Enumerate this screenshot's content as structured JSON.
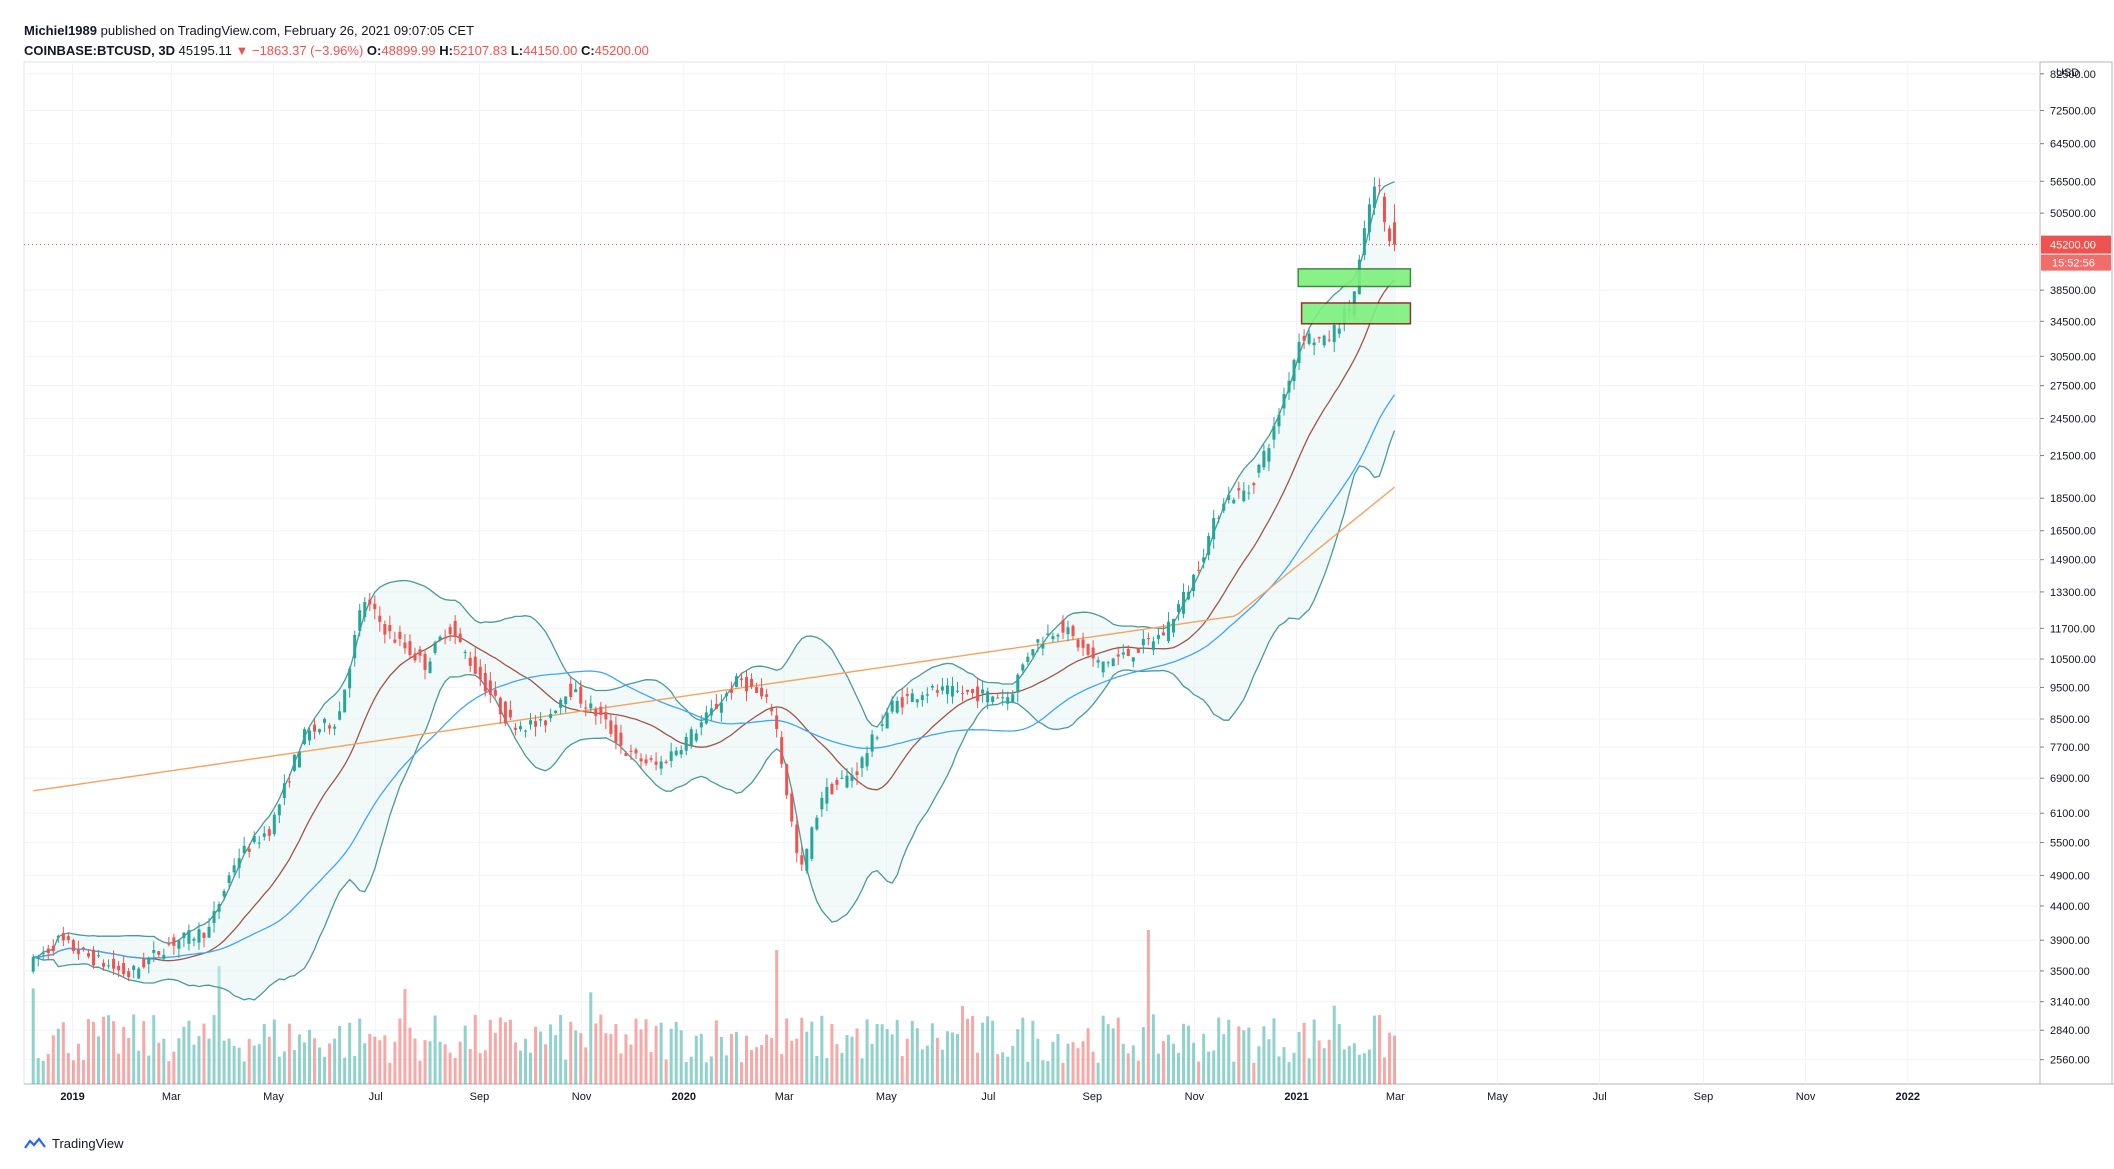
{
  "header": {
    "author": "Michiel1989",
    "published_text": "published on TradingView.com, February 26, 2021 09:07:05 CET",
    "symbol": "COINBASE:BTCUSD, 3D",
    "last": "45195.11",
    "change": "−1863.37 (−3.96%)",
    "o_label": "O:",
    "o_value": "48899.99",
    "h_label": "H:",
    "h_value": "52107.83",
    "l_label": "L:",
    "l_value": "44150.00",
    "c_label": "C:",
    "c_value": "45200.00"
  },
  "footer": {
    "brand": "TradingView"
  },
  "colors": {
    "up": "#26a69a",
    "down": "#ef5350",
    "bb": "#4a9a96",
    "ma20": "#a0544a",
    "ma50": "#42a5f5",
    "ma200": "#f4a460",
    "zone": "#7cf07c"
  },
  "chart_data": {
    "type": "candlestick",
    "currency": "USD",
    "scale": "log",
    "price_axis": [
      "82500.00",
      "72500.00",
      "64500.00",
      "56500.00",
      "50500.00",
      "38500.00",
      "34500.00",
      "30500.00",
      "27500.00",
      "24500.00",
      "21500.00",
      "18500.00",
      "16500.00",
      "14900.00",
      "13300.00",
      "11700.00",
      "10500.00",
      "9500.00",
      "8500.00",
      "7700.00",
      "6900.00",
      "6100.00",
      "5500.00",
      "4900.00",
      "4400.00",
      "3900.00",
      "3500.00",
      "3140.00",
      "2840.00",
      "2560.00"
    ],
    "last_price": "45200.00",
    "countdown": "15:52:56",
    "time_axis": [
      "2019",
      "Mar",
      "May",
      "Jul",
      "Sep",
      "Nov",
      "2020",
      "Mar",
      "May",
      "Jul",
      "Sep",
      "Nov",
      "2021",
      "Mar",
      "May",
      "Jul",
      "Sep",
      "Nov",
      "2022"
    ],
    "close_path": [
      [
        "2018-12-10",
        3600
      ],
      [
        "2018-12-25",
        3900
      ],
      [
        "2019-01-10",
        3700
      ],
      [
        "2019-02-05",
        3450
      ],
      [
        "2019-03-01",
        3850
      ],
      [
        "2019-03-25",
        4050
      ],
      [
        "2019-04-10",
        5200
      ],
      [
        "2019-05-01",
        5800
      ],
      [
        "2019-05-20",
        8000
      ],
      [
        "2019-06-10",
        8500
      ],
      [
        "2019-06-25",
        13000
      ],
      [
        "2019-07-10",
        11500
      ],
      [
        "2019-08-01",
        10300
      ],
      [
        "2019-08-15",
        11800
      ],
      [
        "2019-09-01",
        10000
      ],
      [
        "2019-09-20",
        8400
      ],
      [
        "2019-10-10",
        8300
      ],
      [
        "2019-10-25",
        9500
      ],
      [
        "2019-11-15",
        8500
      ],
      [
        "2019-11-30",
        7500
      ],
      [
        "2019-12-18",
        7200
      ],
      [
        "2020-01-10",
        8200
      ],
      [
        "2020-02-05",
        9800
      ],
      [
        "2020-02-25",
        8800
      ],
      [
        "2020-03-12",
        4900
      ],
      [
        "2020-03-25",
        6500
      ],
      [
        "2020-04-15",
        7100
      ],
      [
        "2020-05-05",
        8900
      ],
      [
        "2020-05-25",
        9400
      ],
      [
        "2020-06-20",
        9300
      ],
      [
        "2020-07-15",
        9200
      ],
      [
        "2020-07-28",
        11000
      ],
      [
        "2020-08-15",
        11800
      ],
      [
        "2020-09-05",
        10300
      ],
      [
        "2020-09-25",
        10700
      ],
      [
        "2020-10-15",
        11500
      ],
      [
        "2020-11-01",
        13800
      ],
      [
        "2020-11-20",
        18500
      ],
      [
        "2020-12-05",
        19000
      ],
      [
        "2020-12-20",
        23500
      ],
      [
        "2021-01-05",
        33000
      ],
      [
        "2021-01-20",
        32000
      ],
      [
        "2021-02-05",
        37000
      ],
      [
        "2021-02-15",
        52000
      ],
      [
        "2021-02-20",
        57000
      ],
      [
        "2021-02-26",
        45200
      ]
    ],
    "zones": [
      {
        "label": "resistance-zone-upper",
        "top": 41500,
        "bottom": 39000,
        "from": "2021-01-02",
        "to": "2021-03-10"
      },
      {
        "label": "resistance-zone-lower",
        "top": 36800,
        "bottom": 34200,
        "from": "2021-01-04",
        "to": "2021-03-10"
      }
    ],
    "indicators": [
      "Bollinger Bands",
      "MA 20",
      "MA 50",
      "MA 200",
      "Volume"
    ]
  }
}
